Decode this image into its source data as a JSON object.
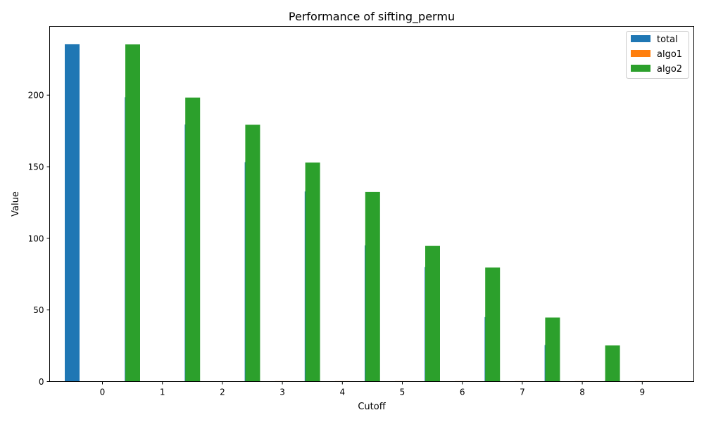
{
  "chart_data": {
    "type": "bar",
    "title": "Performance of sifting_permu",
    "xlabel": "Cutoff",
    "ylabel": "Value",
    "categories": [
      "0",
      "1",
      "2",
      "3",
      "4",
      "5",
      "6",
      "7",
      "8",
      "9"
    ],
    "ylim": [
      0,
      248
    ],
    "yticks": [
      0,
      50,
      100,
      150,
      200
    ],
    "grid": false,
    "legend_position": "top-right",
    "series": [
      {
        "name": "total",
        "color": "#1f77b4",
        "values": [
          235.5,
          198.5,
          179.5,
          153.2,
          132.7,
          95.1,
          79.9,
          45.0,
          25.5,
          0.4
        ]
      },
      {
        "name": "algo1",
        "color": "#ff7f0e",
        "values": [
          0.2,
          0.2,
          0.2,
          0.3,
          0.3,
          0.3,
          0.3,
          0.3,
          0.3,
          0.3
        ]
      },
      {
        "name": "algo2",
        "color": "#2ca02c",
        "values": [
          235.4,
          198.3,
          179.3,
          152.9,
          132.4,
          94.7,
          79.6,
          44.7,
          25.2,
          0.0
        ]
      }
    ]
  }
}
